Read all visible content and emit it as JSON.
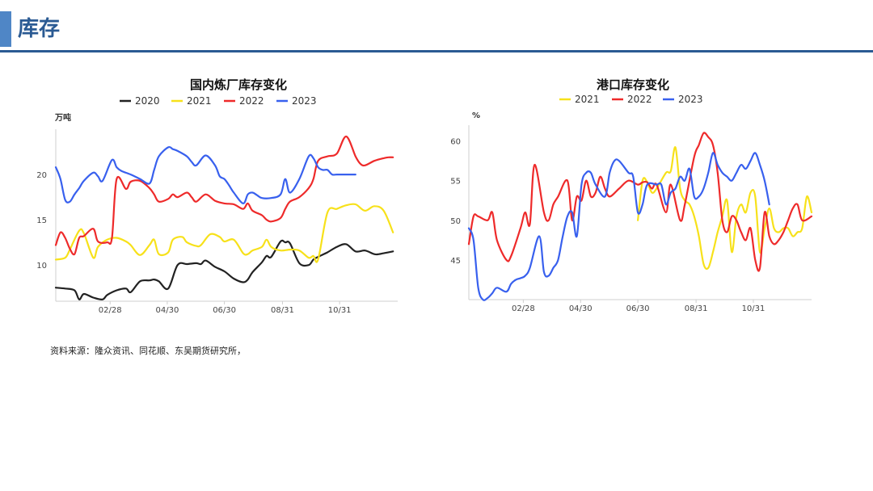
{
  "header": {
    "title": "库存"
  },
  "source": "资料来源：隆众资讯、同花顺、东吴期货研究所，",
  "colors": {
    "2020": "#222222",
    "2021": "#f7e11a",
    "2022": "#ee2a2a",
    "2023": "#3860ee",
    "accent": "#2a5a93"
  },
  "chart_data": [
    {
      "type": "line",
      "title": "国内炼厂库存变化",
      "ylabel": "万吨",
      "ylim": [
        6,
        25
      ],
      "yticks": [
        "10",
        "15",
        "20"
      ],
      "ytick_values": [
        10,
        15,
        20
      ],
      "xlim": [
        0,
        365
      ],
      "xticks": [
        "02/28",
        "04/30",
        "06/30",
        "08/31",
        "10/31"
      ],
      "xtick_days": [
        58,
        119,
        180,
        242,
        303
      ],
      "series": [
        {
          "name": "2020",
          "x": [
            0,
            10,
            20,
            25,
            30,
            40,
            50,
            55,
            65,
            75,
            80,
            90,
            100,
            105,
            110,
            120,
            130,
            140,
            150,
            155,
            160,
            170,
            180,
            190,
            200,
            205,
            210,
            220,
            225,
            230,
            240,
            245,
            250,
            260,
            270,
            275,
            280,
            290,
            300,
            310,
            320,
            330,
            340,
            345,
            350,
            360
          ],
          "y": [
            7.5,
            7.4,
            7.2,
            6.2,
            6.8,
            6.4,
            6.2,
            6.7,
            7.2,
            7.4,
            7.0,
            8.2,
            8.3,
            8.4,
            8.2,
            7.4,
            10.0,
            10.1,
            10.2,
            10.1,
            10.5,
            9.8,
            9.3,
            8.5,
            8.1,
            8.4,
            9.2,
            10.3,
            11.0,
            10.9,
            12.6,
            12.5,
            12.4,
            10.2,
            10.0,
            10.6,
            10.9,
            11.4,
            12.0,
            12.3,
            11.5,
            11.6,
            11.2,
            11.2,
            11.3,
            11.5
          ]
        },
        {
          "name": "2021",
          "x": [
            0,
            10,
            15,
            25,
            30,
            40,
            45,
            55,
            65,
            75,
            80,
            90,
            100,
            105,
            110,
            120,
            125,
            135,
            140,
            150,
            155,
            165,
            175,
            180,
            190,
            200,
            205,
            210,
            220,
            225,
            230,
            240,
            250,
            260,
            270,
            275,
            280,
            290,
            300,
            310,
            320,
            330,
            340,
            350,
            360
          ],
          "y": [
            10.6,
            10.8,
            11.7,
            13.8,
            13.5,
            10.8,
            12.0,
            12.8,
            13.0,
            12.6,
            12.2,
            11.1,
            12.2,
            12.8,
            11.2,
            11.4,
            12.8,
            13.1,
            12.5,
            12.1,
            12.2,
            13.4,
            13.1,
            12.6,
            12.8,
            11.3,
            11.2,
            11.6,
            12.0,
            12.8,
            12.0,
            11.6,
            11.7,
            11.6,
            10.8,
            11.0,
            10.6,
            15.8,
            16.2,
            16.6,
            16.7,
            16.0,
            16.5,
            16.0,
            13.6
          ]
        },
        {
          "name": "2022",
          "x": [
            0,
            5,
            10,
            15,
            20,
            25,
            30,
            40,
            45,
            55,
            60,
            65,
            75,
            80,
            90,
            100,
            105,
            110,
            120,
            125,
            130,
            140,
            145,
            150,
            160,
            170,
            180,
            190,
            200,
            205,
            210,
            220,
            225,
            230,
            240,
            245,
            250,
            260,
            270,
            275,
            280,
            290,
            300,
            310,
            320,
            325,
            330,
            340,
            350,
            355,
            360
          ],
          "y": [
            12.2,
            13.6,
            13.0,
            11.8,
            11.2,
            13.0,
            13.2,
            14.0,
            12.6,
            12.5,
            13.0,
            19.5,
            18.4,
            19.2,
            19.3,
            18.5,
            17.8,
            17.0,
            17.3,
            17.8,
            17.5,
            18.0,
            17.5,
            17.0,
            17.8,
            17.1,
            16.8,
            16.7,
            16.2,
            16.8,
            16.0,
            15.5,
            15.0,
            14.8,
            15.2,
            16.2,
            17.0,
            17.5,
            18.5,
            19.5,
            21.5,
            22.0,
            22.3,
            24.2,
            22.0,
            21.2,
            21.0,
            21.5,
            21.8,
            21.9,
            21.9
          ]
        },
        {
          "name": "2023",
          "x": [
            0,
            5,
            10,
            15,
            20,
            25,
            30,
            40,
            45,
            50,
            60,
            65,
            70,
            80,
            90,
            100,
            105,
            110,
            120,
            125,
            130,
            140,
            145,
            150,
            160,
            170,
            175,
            180,
            185,
            190,
            200,
            205,
            210,
            215,
            220,
            230,
            240,
            245,
            250,
            260,
            270,
            275,
            280,
            285,
            290,
            295,
            300,
            310,
            320
          ],
          "y": [
            20.8,
            19.5,
            17.2,
            17.0,
            17.8,
            18.5,
            19.3,
            20.2,
            19.8,
            19.3,
            21.6,
            20.8,
            20.4,
            20.0,
            19.5,
            19.0,
            20.5,
            22.0,
            23.0,
            22.8,
            22.6,
            22.0,
            21.4,
            21.0,
            22.1,
            21.0,
            19.8,
            19.5,
            18.8,
            18.0,
            16.8,
            17.8,
            18.0,
            17.7,
            17.4,
            17.4,
            17.8,
            19.5,
            18.0,
            19.5,
            22.0,
            21.8,
            20.8,
            20.5,
            20.5,
            20.0,
            20.0,
            20.0,
            20.0
          ]
        }
      ]
    },
    {
      "type": "line",
      "title": "港口库存变化",
      "ylabel": "%",
      "ylim": [
        40,
        62
      ],
      "yticks": [
        "45",
        "50",
        "55",
        "60"
      ],
      "ytick_values": [
        45,
        50,
        55,
        60
      ],
      "xlim": [
        0,
        365
      ],
      "xticks": [
        "02/28",
        "04/30",
        "06/30",
        "08/31",
        "10/31"
      ],
      "xtick_days": [
        58,
        119,
        180,
        242,
        303
      ],
      "series": [
        {
          "name": "2021",
          "x": [
            180,
            185,
            190,
            195,
            200,
            210,
            215,
            220,
            225,
            230,
            235,
            240,
            245,
            250,
            255,
            260,
            265,
            270,
            275,
            280,
            285,
            290,
            295,
            300,
            305,
            310,
            315,
            320,
            325,
            330,
            335,
            340,
            345,
            350,
            355,
            360,
            365
          ],
          "y": [
            50.0,
            55.0,
            54.8,
            53.5,
            54.0,
            56.0,
            56.2,
            59.2,
            54.0,
            52.5,
            52.0,
            50.5,
            48.0,
            44.5,
            44.0,
            46.0,
            48.5,
            50.5,
            52.5,
            46.0,
            50.5,
            52.0,
            51.0,
            53.5,
            53.0,
            46.0,
            49.0,
            51.5,
            49.0,
            48.5,
            49.0,
            49.0,
            48.0,
            48.5,
            49.0,
            53.0,
            51.0
          ]
        },
        {
          "name": "2022",
          "x": [
            0,
            5,
            10,
            20,
            25,
            30,
            40,
            45,
            55,
            60,
            65,
            70,
            80,
            85,
            90,
            95,
            105,
            110,
            115,
            120,
            125,
            130,
            135,
            140,
            145,
            150,
            160,
            170,
            180,
            185,
            190,
            195,
            200,
            210,
            215,
            225,
            230,
            240,
            245,
            250,
            255,
            260,
            265,
            270,
            275,
            280,
            285,
            290,
            295,
            300,
            305,
            310,
            315,
            320,
            325,
            330,
            335,
            340,
            345,
            350,
            355,
            365
          ],
          "y": [
            47.0,
            50.5,
            50.5,
            50.0,
            51.0,
            47.5,
            45.0,
            45.5,
            49.0,
            51.0,
            49.5,
            57.0,
            51.0,
            50.0,
            52.0,
            53.0,
            55.0,
            50.0,
            53.0,
            52.5,
            55.0,
            53.0,
            53.5,
            55.5,
            54.0,
            53.0,
            54.0,
            55.0,
            54.5,
            54.8,
            54.8,
            54.0,
            54.5,
            51.0,
            54.5,
            50.0,
            52.0,
            58.0,
            59.5,
            61.0,
            60.5,
            59.5,
            56.0,
            50.0,
            48.5,
            50.5,
            50.0,
            48.5,
            47.5,
            49.0,
            45.0,
            44.0,
            51.0,
            48.0,
            47.0,
            47.5,
            48.5,
            50.0,
            51.5,
            52.0,
            50.0,
            50.5
          ]
        },
        {
          "name": "2023",
          "x": [
            0,
            5,
            10,
            15,
            20,
            25,
            30,
            40,
            45,
            50,
            55,
            60,
            65,
            75,
            80,
            85,
            90,
            95,
            100,
            105,
            110,
            115,
            120,
            125,
            130,
            135,
            145,
            150,
            155,
            160,
            170,
            175,
            180,
            185,
            190,
            200,
            205,
            210,
            215,
            220,
            225,
            230,
            235,
            240,
            245,
            250,
            255,
            260,
            265,
            270,
            275,
            280,
            285,
            290,
            295,
            300,
            305,
            310,
            315,
            320
          ],
          "y": [
            49.0,
            47.5,
            41.5,
            40.0,
            40.2,
            40.8,
            41.5,
            41.0,
            42.0,
            42.5,
            42.7,
            43.0,
            44.0,
            48.0,
            43.5,
            43.0,
            44.0,
            45.0,
            48.0,
            50.5,
            51.0,
            48.0,
            54.5,
            56.0,
            56.0,
            54.5,
            53.0,
            56.0,
            57.5,
            57.5,
            56.0,
            55.5,
            51.0,
            52.0,
            54.5,
            54.5,
            54.5,
            52.0,
            53.5,
            54.0,
            55.5,
            55.0,
            56.5,
            53.0,
            53.0,
            54.0,
            56.0,
            58.5,
            57.0,
            56.0,
            55.5,
            55.0,
            56.0,
            57.0,
            56.5,
            57.5,
            58.5,
            57.0,
            55.0,
            52.0
          ]
        }
      ]
    }
  ]
}
